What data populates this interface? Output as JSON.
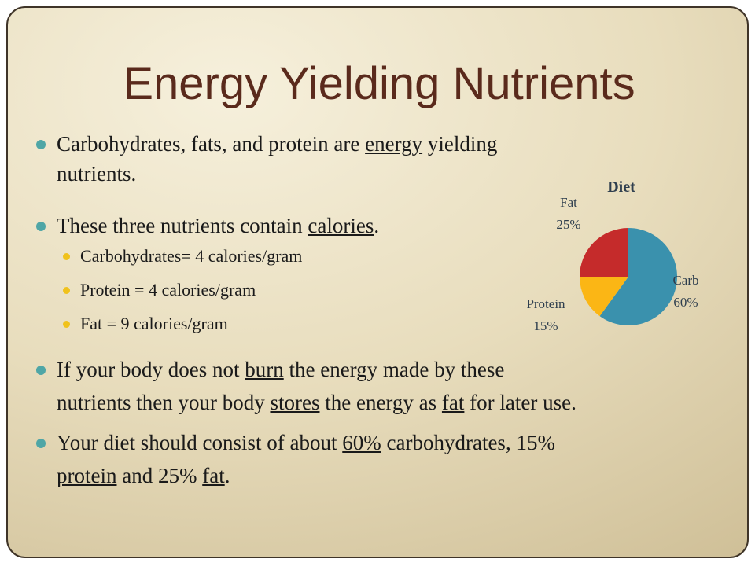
{
  "slide": {
    "title": "Energy Yielding Nutrients",
    "bullets": [
      {
        "segments": [
          {
            "text": "Carbohydrates, fats, and protein are ",
            "u": false
          },
          {
            "text": "energy",
            "u": true
          },
          {
            "text": " yielding",
            "u": false
          }
        ],
        "segments2": [
          {
            "text": "nutrients.",
            "u": false
          }
        ]
      },
      {
        "segments": [
          {
            "text": "These three nutrients contain ",
            "u": false
          },
          {
            "text": "calories",
            "u": true
          },
          {
            "text": ".",
            "u": false
          }
        ]
      },
      {
        "segments": [
          {
            "text": "If your body does not ",
            "u": false
          },
          {
            "text": "burn",
            "u": true
          },
          {
            "text": " the energy made by these",
            "u": false
          }
        ],
        "segments2": [
          {
            "text": "nutrients then your body ",
            "u": false
          },
          {
            "text": "stores",
            "u": true
          },
          {
            "text": " the energy as ",
            "u": false
          },
          {
            "text": "fat",
            "u": true
          },
          {
            "text": " for later use.",
            "u": false
          }
        ]
      },
      {
        "segments": [
          {
            "text": "Your diet should consist of about ",
            "u": false
          },
          {
            "text": "60%",
            "u": true
          },
          {
            "text": " carbohydrates, 15%",
            "u": false
          }
        ],
        "segments2": [
          {
            "text": "protein",
            "u": true
          },
          {
            "text": " and 25% ",
            "u": false
          },
          {
            "text": "fat",
            "u": true
          },
          {
            "text": ".",
            "u": false
          }
        ]
      }
    ],
    "sub_bullets": [
      "Carbohydrates= 4 calories/gram",
      "Protein = 4 calories/gram",
      "Fat = 9 calories/gram"
    ]
  },
  "chart_data": {
    "type": "pie",
    "title": "Diet",
    "slices": [
      {
        "name": "Carb",
        "value": 60,
        "label": "60%",
        "color": "#3a91ad"
      },
      {
        "name": "Protein",
        "value": 15,
        "label": "15%",
        "color": "#fbb615"
      },
      {
        "name": "Fat",
        "value": 25,
        "label": "25%",
        "color": "#c52b2b"
      }
    ],
    "legend": "none"
  },
  "colors": {
    "title": "#5a2a1c",
    "bullet_level1": "#4fa6a6",
    "bullet_level2": "#f0c21c",
    "border": "#3f3428"
  }
}
